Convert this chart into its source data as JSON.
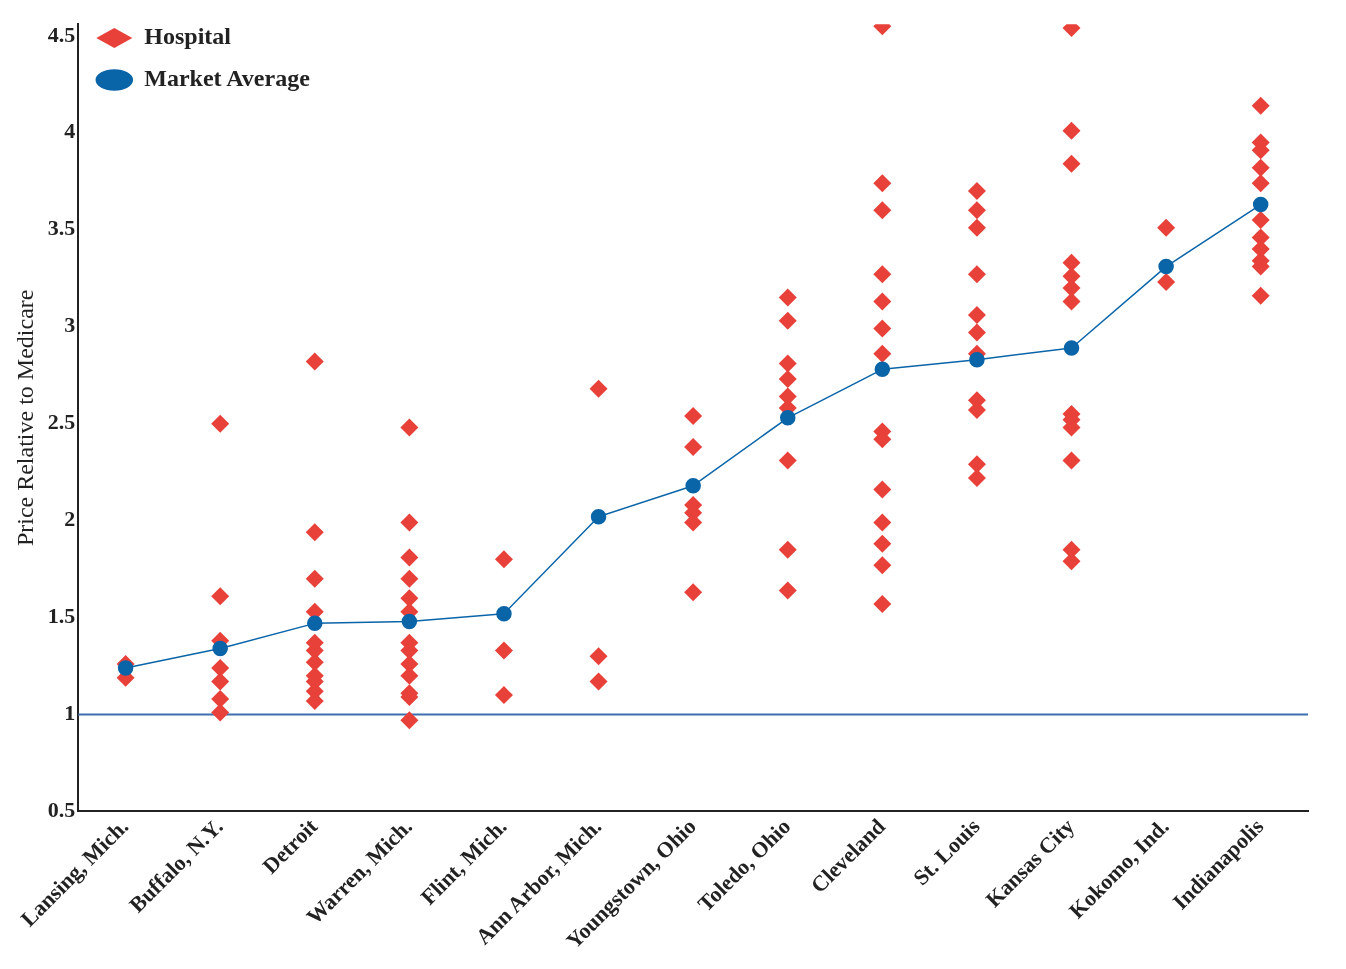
{
  "chart_data": {
    "type": "scatter",
    "ylabel": "Price Relative to Medicare",
    "categories": [
      "Lansing, Mich.",
      "Buffalo, N.Y.",
      "Detroit",
      "Warren, Mich.",
      "Flint, Mich.",
      "Ann Arbor, Mich.",
      "Youngstown, Ohio",
      "Toledo, Ohio",
      "Cleveland",
      "St. Louis",
      "Kansas City",
      "Kokomo, Ind.",
      "Indianapolis"
    ],
    "series": [
      {
        "name": "Hospital",
        "type": "scatter",
        "marker": "diamond",
        "color": "#e8413a",
        "x": [
          "Lansing, Mich.",
          "Lansing, Mich.",
          "Buffalo, N.Y.",
          "Buffalo, N.Y.",
          "Buffalo, N.Y.",
          "Buffalo, N.Y.",
          "Buffalo, N.Y.",
          "Buffalo, N.Y.",
          "Buffalo, N.Y.",
          "Detroit",
          "Detroit",
          "Detroit",
          "Detroit",
          "Detroit",
          "Detroit",
          "Detroit",
          "Detroit",
          "Detroit",
          "Detroit",
          "Detroit",
          "Warren, Mich.",
          "Warren, Mich.",
          "Warren, Mich.",
          "Warren, Mich.",
          "Warren, Mich.",
          "Warren, Mich.",
          "Warren, Mich.",
          "Warren, Mich.",
          "Warren, Mich.",
          "Warren, Mich.",
          "Warren, Mich.",
          "Warren, Mich.",
          "Warren, Mich.",
          "Flint, Mich.",
          "Flint, Mich.",
          "Flint, Mich.",
          "Ann Arbor, Mich.",
          "Ann Arbor, Mich.",
          "Ann Arbor, Mich.",
          "Youngstown, Ohio",
          "Youngstown, Ohio",
          "Youngstown, Ohio",
          "Youngstown, Ohio",
          "Youngstown, Ohio",
          "Youngstown, Ohio",
          "Toledo, Ohio",
          "Toledo, Ohio",
          "Toledo, Ohio",
          "Toledo, Ohio",
          "Toledo, Ohio",
          "Toledo, Ohio",
          "Toledo, Ohio",
          "Toledo, Ohio",
          "Toledo, Ohio",
          "Cleveland",
          "Cleveland",
          "Cleveland",
          "Cleveland",
          "Cleveland",
          "Cleveland",
          "Cleveland",
          "Cleveland",
          "Cleveland",
          "Cleveland",
          "Cleveland",
          "Cleveland",
          "Cleveland",
          "Cleveland",
          "St. Louis",
          "St. Louis",
          "St. Louis",
          "St. Louis",
          "St. Louis",
          "St. Louis",
          "St. Louis",
          "St. Louis",
          "St. Louis",
          "St. Louis",
          "St. Louis",
          "Kansas City",
          "Kansas City",
          "Kansas City",
          "Kansas City",
          "Kansas City",
          "Kansas City",
          "Kansas City",
          "Kansas City",
          "Kansas City",
          "Kansas City",
          "Kansas City",
          "Kansas City",
          "Kansas City",
          "Kokomo, Ind.",
          "Kokomo, Ind.",
          "Indianapolis",
          "Indianapolis",
          "Indianapolis",
          "Indianapolis",
          "Indianapolis",
          "Indianapolis",
          "Indianapolis",
          "Indianapolis",
          "Indianapolis",
          "Indianapolis",
          "Indianapolis"
        ],
        "values": [
          1.26,
          1.19,
          2.5,
          1.61,
          1.38,
          1.24,
          1.17,
          1.08,
          1.01,
          2.82,
          1.94,
          1.7,
          1.53,
          1.37,
          1.33,
          1.27,
          1.2,
          1.17,
          1.12,
          1.07,
          2.48,
          1.99,
          1.81,
          1.7,
          1.6,
          1.53,
          1.37,
          1.33,
          1.26,
          1.2,
          1.11,
          1.09,
          0.97,
          1.8,
          1.33,
          1.1,
          2.68,
          1.3,
          1.17,
          2.54,
          2.38,
          2.08,
          2.04,
          1.99,
          1.63,
          3.15,
          3.03,
          2.81,
          2.73,
          2.64,
          2.58,
          2.31,
          1.85,
          1.64,
          4.55,
          3.74,
          3.6,
          3.27,
          3.13,
          2.99,
          2.86,
          2.46,
          2.42,
          2.16,
          1.99,
          1.88,
          1.77,
          1.57,
          3.7,
          3.6,
          3.51,
          3.27,
          3.06,
          2.97,
          2.86,
          2.62,
          2.57,
          2.29,
          2.22,
          4.54,
          4.01,
          3.84,
          3.33,
          3.26,
          3.2,
          3.13,
          2.55,
          2.52,
          2.48,
          2.31,
          1.85,
          1.79,
          3.51,
          3.23,
          4.14,
          3.95,
          3.91,
          3.82,
          3.74,
          3.55,
          3.46,
          3.4,
          3.34,
          3.31,
          3.16
        ]
      },
      {
        "name": "Market Average",
        "type": "line",
        "marker": "circle",
        "color": "#0a64a8",
        "values": [
          1.24,
          1.34,
          1.47,
          1.48,
          1.52,
          2.02,
          2.18,
          2.53,
          2.78,
          2.83,
          2.89,
          3.31,
          3.63
        ]
      }
    ],
    "ylim": [
      0.5,
      4.56
    ],
    "yticks": [
      0.5,
      1,
      1.5,
      2,
      2.5,
      3,
      3.5,
      4,
      4.5
    ],
    "ref_lines": [
      {
        "axis": "y",
        "value": 1,
        "color": "#3f6fae"
      }
    ],
    "grid": false,
    "legend": "top left"
  }
}
